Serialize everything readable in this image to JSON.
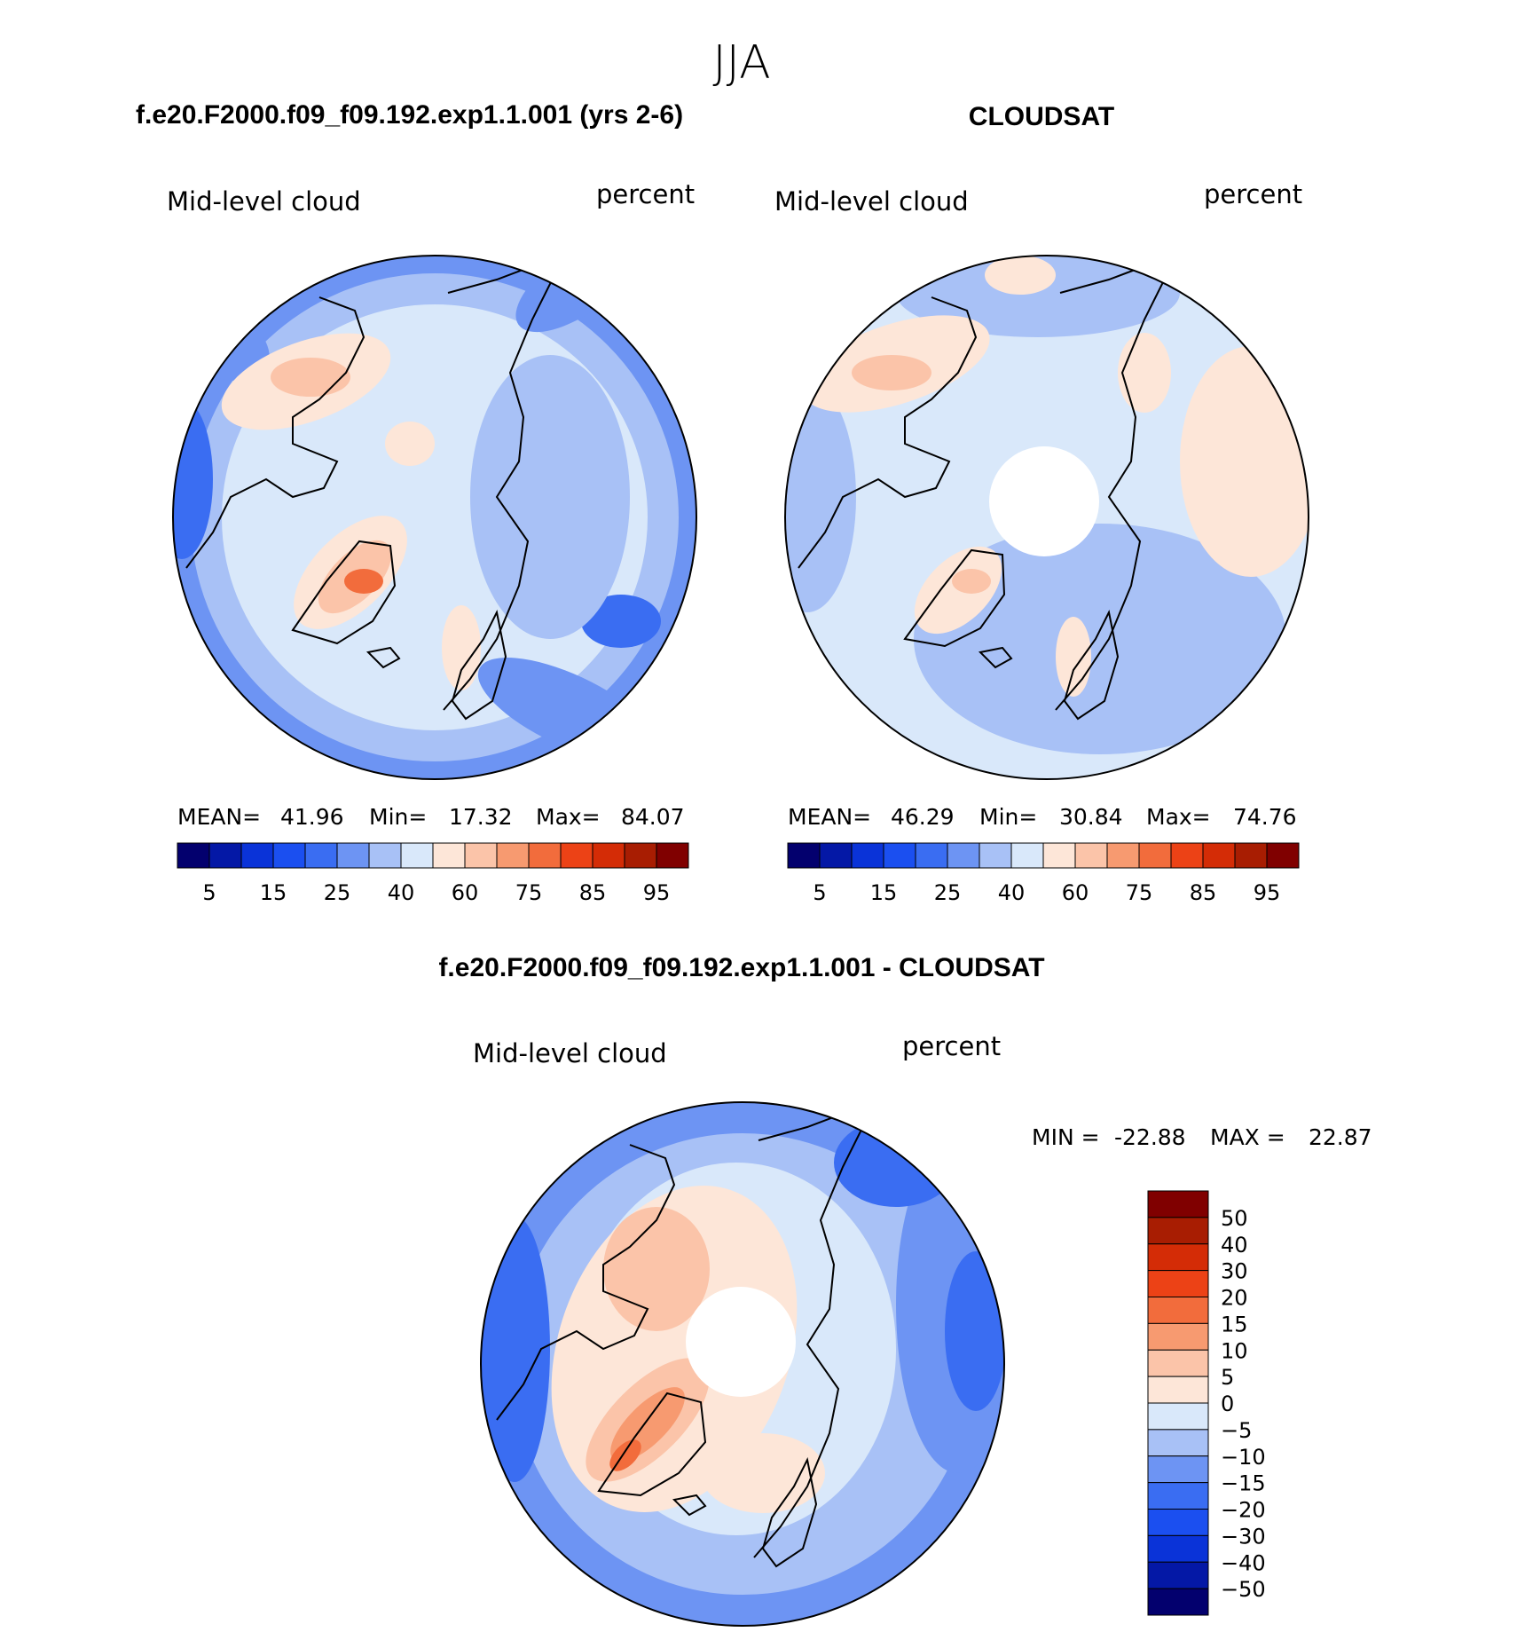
{
  "figure": {
    "season": "JJA"
  },
  "chart_data": [
    {
      "type": "heatmap",
      "projection": "north-polar-stereographic",
      "title": "f.e20.F2000.f09_f09.192.exp1.1.001 (yrs 2-6)",
      "field_label": "Mid-level cloud",
      "units": "percent",
      "stats": {
        "mean_label": "MEAN=",
        "mean": "41.96",
        "min_label": "Min=",
        "min": "17.32",
        "max_label": "Max=",
        "max": "84.07"
      },
      "colorbar": {
        "orientation": "horizontal",
        "colors": [
          "#03006e",
          "#0418a6",
          "#0a33d8",
          "#1b4ff0",
          "#3a6df2",
          "#6d94f3",
          "#a8c1f6",
          "#d9e8fa",
          "#fde6d8",
          "#fbc4a9",
          "#f79a70",
          "#f26c3c",
          "#ec4216",
          "#d42c06",
          "#a81d02",
          "#800000"
        ],
        "tick_labels": [
          "5",
          "15",
          "25",
          "40",
          "60",
          "75",
          "85",
          "95"
        ]
      }
    },
    {
      "type": "heatmap",
      "projection": "north-polar-stereographic",
      "title": "CLOUDSAT",
      "field_label": "Mid-level cloud",
      "units": "percent",
      "stats": {
        "mean_label": "MEAN=",
        "mean": "46.29",
        "min_label": "Min=",
        "min": "30.84",
        "max_label": "Max=",
        "max": "74.76"
      },
      "colorbar": {
        "orientation": "horizontal",
        "colors": [
          "#03006e",
          "#0418a6",
          "#0a33d8",
          "#1b4ff0",
          "#3a6df2",
          "#6d94f3",
          "#a8c1f6",
          "#d9e8fa",
          "#fde6d8",
          "#fbc4a9",
          "#f79a70",
          "#f26c3c",
          "#ec4216",
          "#d42c06",
          "#a81d02",
          "#800000"
        ],
        "tick_labels": [
          "5",
          "15",
          "25",
          "40",
          "60",
          "75",
          "85",
          "95"
        ]
      }
    },
    {
      "type": "heatmap",
      "projection": "north-polar-stereographic",
      "title": "f.e20.F2000.f09_f09.192.exp1.1.001 - CLOUDSAT",
      "field_label": "Mid-level cloud",
      "units": "percent",
      "stats": {
        "min_label": "MIN =",
        "min": "-22.88",
        "max_label": "MAX =",
        "max": "22.87"
      },
      "colorbar": {
        "orientation": "vertical",
        "colors": [
          "#800000",
          "#a81d02",
          "#d42c06",
          "#ec4216",
          "#f26c3c",
          "#f79a70",
          "#fbc4a9",
          "#fde6d8",
          "#d9e8fa",
          "#a8c1f6",
          "#6d94f3",
          "#3a6df2",
          "#1b4ff0",
          "#0a33d8",
          "#0418a6",
          "#03006e"
        ],
        "tick_labels": [
          "50",
          "40",
          "30",
          "20",
          "15",
          "10",
          "5",
          "0",
          "-5",
          "-10",
          "-15",
          "-20",
          "-30",
          "-40",
          "-50"
        ]
      }
    }
  ]
}
